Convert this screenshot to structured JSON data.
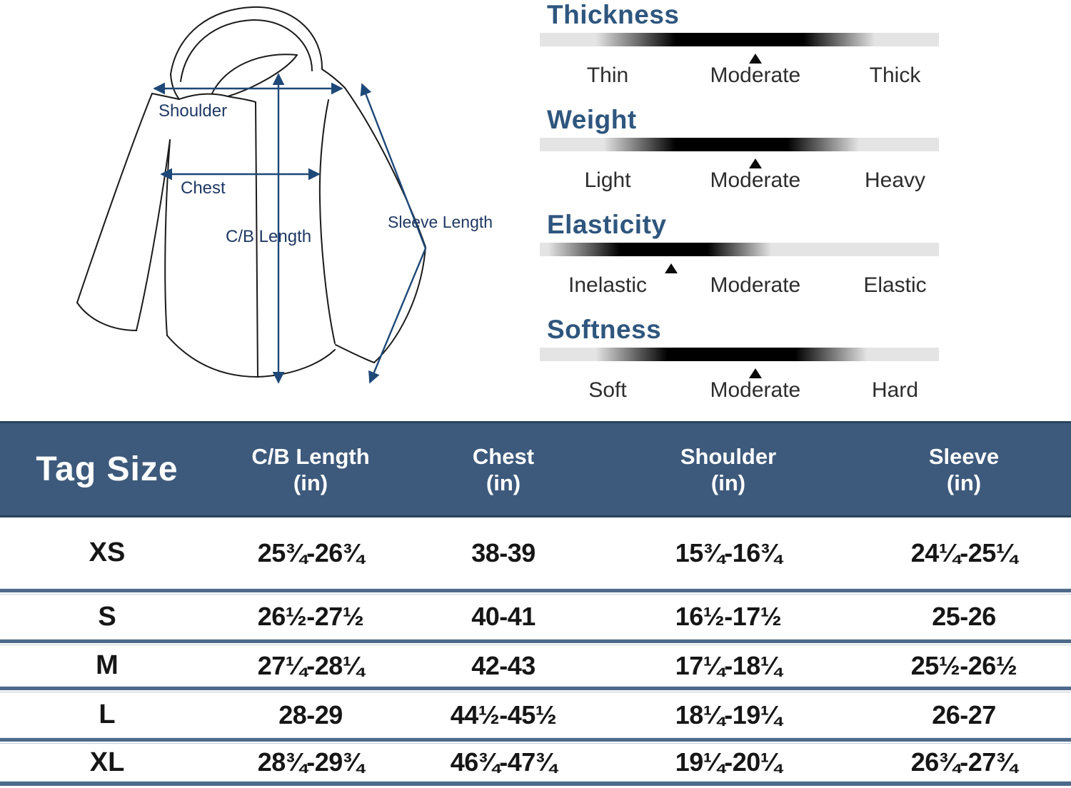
{
  "diagram": {
    "labels": {
      "shoulder": "Shoulder",
      "chest": "Chest",
      "cb_length": "C/B Length",
      "sleeve_length": "Sleeve Length"
    },
    "arrow_color": "#1e4878",
    "label_color": "#1f3864"
  },
  "attributes": {
    "title_color": "#2e567e",
    "sections": [
      {
        "name": "Thickness",
        "labels": [
          "Thin",
          "Moderate",
          "Thick"
        ],
        "selected": "Moderate",
        "marker_percent": 54,
        "blob": [
          14,
          34,
          66,
          84
        ]
      },
      {
        "name": "Weight",
        "labels": [
          "Light",
          "Moderate",
          "Heavy"
        ],
        "selected": "Moderate",
        "marker_percent": 54,
        "blob": [
          16,
          34,
          62,
          80
        ]
      },
      {
        "name": "Elasticity",
        "labels": [
          "Inelastic",
          "Moderate",
          "Elastic"
        ],
        "selected": "Inelastic-Moderate",
        "marker_percent": 33,
        "blob": [
          2,
          20,
          42,
          58
        ]
      },
      {
        "name": "Softness",
        "labels": [
          "Soft",
          "Moderate",
          "Hard"
        ],
        "selected": "Moderate",
        "marker_percent": 54,
        "blob": [
          14,
          32,
          64,
          82
        ]
      }
    ]
  },
  "size_table": {
    "header_bg": "#3d5a7c",
    "columns": [
      {
        "label": "Tag Size",
        "unit": ""
      },
      {
        "label": "C/B Length",
        "unit": "(in)"
      },
      {
        "label": "Chest",
        "unit": "(in)"
      },
      {
        "label": "Shoulder",
        "unit": "(in)"
      },
      {
        "label": "Sleeve",
        "unit": "(in)"
      }
    ],
    "rows": [
      {
        "size": "XS",
        "cb_length": "25¾-26¾",
        "chest": "38-39",
        "shoulder": "15¾-16¾",
        "sleeve": "24¼-25¼"
      },
      {
        "size": "S",
        "cb_length": "26½-27½",
        "chest": "40-41",
        "shoulder": "16½-17½",
        "sleeve": "25-26"
      },
      {
        "size": "M",
        "cb_length": "27¼-28¼",
        "chest": "42-43",
        "shoulder": "17¼-18¼",
        "sleeve": "25½-26½"
      },
      {
        "size": "L",
        "cb_length": "28-29",
        "chest": "44½-45½",
        "shoulder": "18¼-19¼",
        "sleeve": "26-27"
      },
      {
        "size": "XL",
        "cb_length": "28¾-29¾",
        "chest": "46¾-47¾",
        "shoulder": "19¼-20¼",
        "sleeve": "26¾-27¾"
      }
    ]
  }
}
